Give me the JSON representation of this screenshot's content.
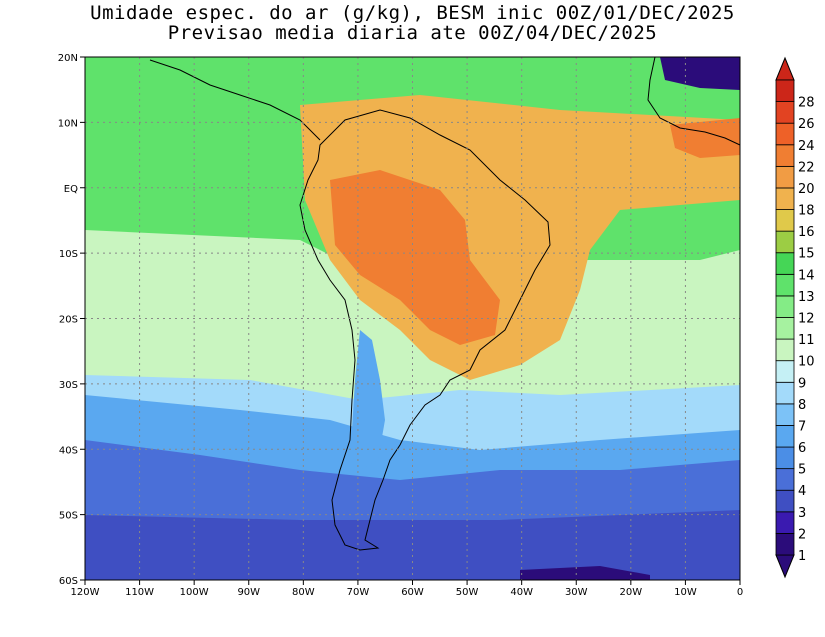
{
  "title": {
    "line1": "Umidade espec. do ar (g/kg), BESM inic 00Z/01/DEC/2025",
    "line2": "Previsao media diaria ate 00Z/04/DEC/2025"
  },
  "axes": {
    "lat_labels": [
      "20N",
      "10N",
      "EQ",
      "10S",
      "20S",
      "30S",
      "40S",
      "50S",
      "60S"
    ],
    "lon_labels": [
      "120W",
      "110W",
      "100W",
      "90W",
      "80W",
      "70W",
      "60W",
      "50W",
      "40W",
      "30W",
      "20W",
      "10W",
      "0"
    ]
  },
  "colorbar": {
    "levels": [
      "1",
      "2",
      "3",
      "4",
      "5",
      "6",
      "7",
      "8",
      "9",
      "10",
      "11",
      "12",
      "13",
      "14",
      "15",
      "16",
      "18",
      "20",
      "22",
      "24",
      "26",
      "28"
    ],
    "colors": [
      "#2b0c7a",
      "#3a1ab0",
      "#3f4fc2",
      "#4a6fd8",
      "#4b8ee6",
      "#5aa8f0",
      "#7cc2f7",
      "#a3dafa",
      "#c5f0f5",
      "#c9f5c0",
      "#a6f2a0",
      "#84ec86",
      "#5fe26b",
      "#45d656",
      "#9ccd44",
      "#e0c94a",
      "#f0b24e",
      "#f19c44",
      "#f07e32",
      "#ee6128",
      "#e24322",
      "#cc2619"
    ]
  },
  "regions": {
    "high": "#f07e32",
    "warm": "#f0b24e",
    "green": "#5fe26b",
    "light_green": "#a6f2a0",
    "pale": "#c9f5c0",
    "light_blue": "#a3dafa",
    "blue": "#5aa8f0",
    "mid_blue": "#4a6fd8",
    "deep_blue": "#3f4fc2",
    "darkest": "#2b0c7a"
  }
}
